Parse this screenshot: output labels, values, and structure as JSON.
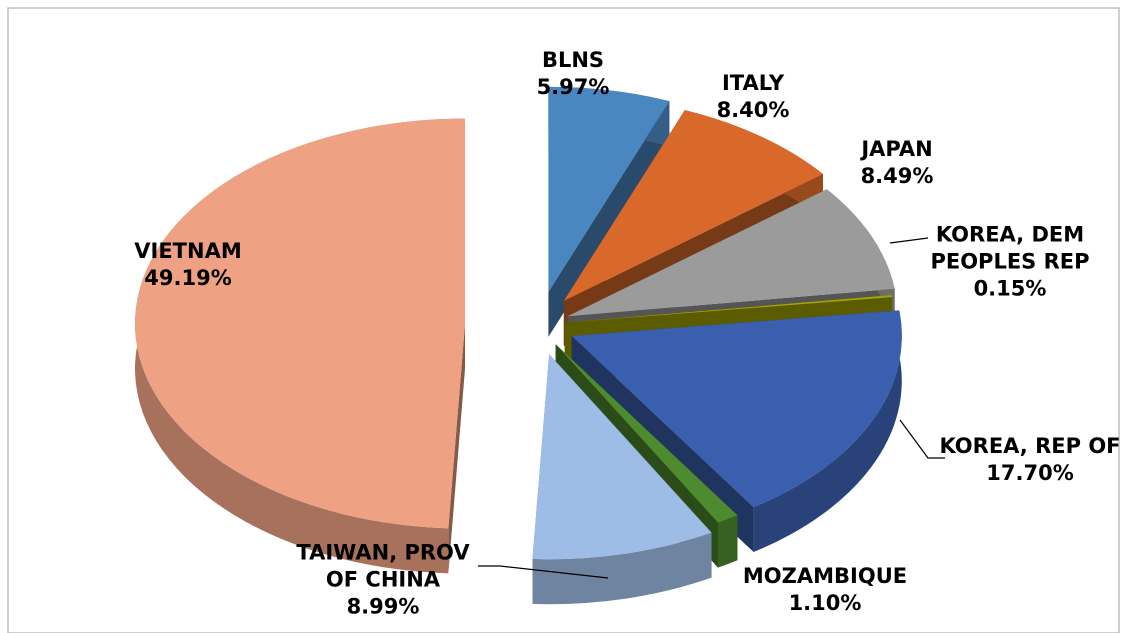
{
  "chart_data": {
    "type": "pie",
    "categories": [
      "BLNS",
      "ITALY",
      "JAPAN",
      "KOREA, DEM PEOPLES REP",
      "KOREA, REP OF",
      "MOZAMBIQUE",
      "TAIWAN, PROV OF CHINA",
      "VIETNAM"
    ],
    "values": [
      5.97,
      8.4,
      8.49,
      0.15,
      17.7,
      1.1,
      8.99,
      49.19
    ],
    "value_labels": [
      "5.97%",
      "8.40%",
      "8.49%",
      "0.15%",
      "17.70%",
      "1.10%",
      "8.99%",
      "49.19%"
    ],
    "colors": [
      "#4a86c0",
      "#d9692a",
      "#9b9b9b",
      "#a6a600",
      "#3a5fae",
      "#4e8a2e",
      "#9dbde6",
      "#eea283"
    ]
  }
}
